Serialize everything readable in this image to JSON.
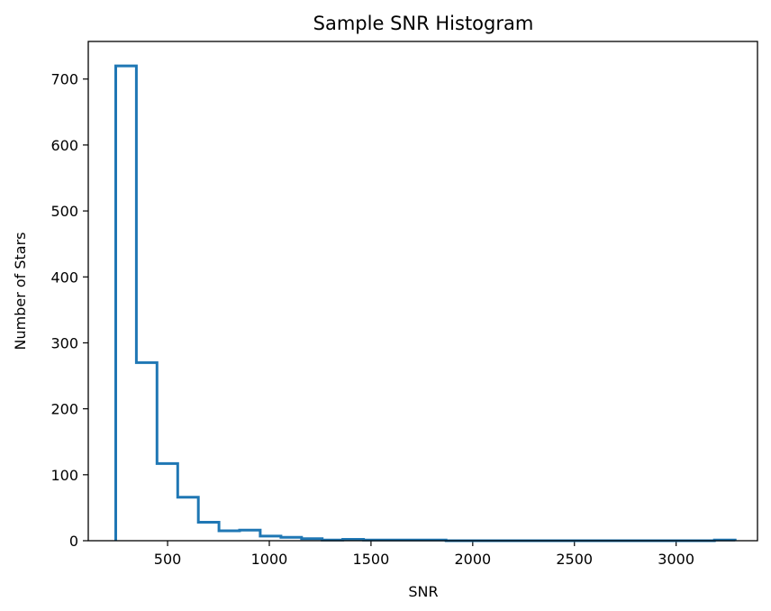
{
  "chart_data": {
    "type": "histogram",
    "title": "Sample SNR Histogram",
    "xlabel": "SNR",
    "ylabel": "Number of Stars",
    "xlim": [
      110,
      3400
    ],
    "ylim": [
      0,
      757
    ],
    "xticks": [
      500,
      1000,
      1500,
      2000,
      2500,
      3000
    ],
    "yticks": [
      0,
      100,
      200,
      300,
      400,
      500,
      600,
      700
    ],
    "bin_width": 101.5,
    "bin_edges": [
      245,
      346.5,
      448,
      549.5,
      651,
      752.5,
      854,
      955.5,
      1057,
      1158.5,
      1260,
      1361.5,
      1463,
      1564.5,
      1666,
      1767.5,
      1869,
      1970.5,
      2072,
      2173.5,
      2275,
      2376.5,
      2478,
      2579.5,
      2681,
      2782.5,
      2884,
      2985.5,
      3087,
      3188.5,
      3290
    ],
    "counts": [
      720,
      270,
      117,
      66,
      28,
      15,
      16,
      7,
      5,
      3,
      1,
      2,
      1,
      1,
      1,
      1,
      0,
      0,
      0,
      0,
      0,
      0,
      0,
      0,
      0,
      0,
      0,
      0,
      0,
      1
    ],
    "histtype": "step",
    "color": "#1f77b4",
    "grid": false,
    "legend": "none"
  }
}
